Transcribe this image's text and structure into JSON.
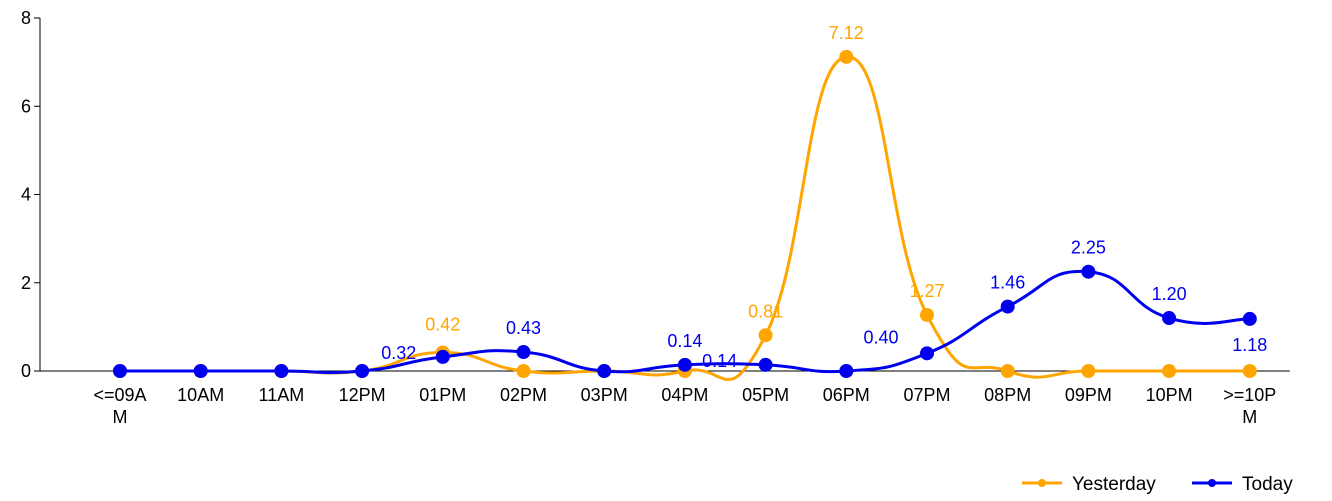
{
  "chart_data": {
    "type": "line",
    "smooth": true,
    "categories": [
      [
        "<=09A",
        "M"
      ],
      [
        "10AM"
      ],
      [
        "11AM"
      ],
      [
        "12PM"
      ],
      [
        "01PM"
      ],
      [
        "02PM"
      ],
      [
        "03PM"
      ],
      [
        "04PM"
      ],
      [
        "05PM"
      ],
      [
        "06PM"
      ],
      [
        "07PM"
      ],
      [
        "08PM"
      ],
      [
        "09PM"
      ],
      [
        "10PM"
      ],
      [
        ">=10P",
        "M"
      ]
    ],
    "series": [
      {
        "name": "Yesterday",
        "color": "#FFA500",
        "values": [
          0,
          0,
          0,
          0,
          0.42,
          0,
          0,
          0,
          0.81,
          7.12,
          1.27,
          0,
          0,
          0,
          0
        ],
        "labels": [
          null,
          null,
          null,
          null,
          "0.42",
          null,
          null,
          null,
          "0.81",
          "7.12",
          "1.27",
          null,
          null,
          null,
          null
        ]
      },
      {
        "name": "Today",
        "color": "#0000EE",
        "values": [
          0,
          0,
          0,
          0,
          0.32,
          0.43,
          0,
          0.14,
          0.14,
          0,
          0.4,
          1.46,
          2.25,
          1.2,
          1.18
        ],
        "labels": [
          null,
          null,
          null,
          null,
          "0.32",
          "0.43",
          null,
          "0.14",
          "0.14",
          null,
          "0.40",
          "1.46",
          "2.25",
          "1.20",
          "1.18"
        ]
      }
    ],
    "yaxis": {
      "min": 0,
      "max": 8,
      "ticks": [
        "0",
        "2",
        "4",
        "6",
        "8"
      ]
    },
    "grid": false,
    "legend": {
      "position": "bottom-right"
    }
  }
}
